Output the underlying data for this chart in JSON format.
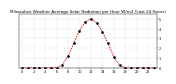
{
  "hours": [
    0,
    1,
    2,
    3,
    4,
    5,
    6,
    7,
    8,
    9,
    10,
    11,
    12,
    13,
    14,
    15,
    16,
    17,
    18,
    19,
    20,
    21,
    22,
    23
  ],
  "values": [
    0,
    0,
    0,
    0,
    0,
    0,
    2,
    30,
    120,
    250,
    380,
    470,
    500,
    460,
    370,
    250,
    110,
    25,
    2,
    0,
    0,
    0,
    0,
    0
  ],
  "line_color": "#dd0000",
  "dot_color": "#000000",
  "bg_color": "#ffffff",
  "ylim": [
    0,
    550
  ],
  "xlim": [
    -0.5,
    23.5
  ],
  "grid_color": "#bbbbbb",
  "title": "Milwaukee Weather Average Solar Radiation per Hour W/m2 (Last 24 Hours)",
  "title_fontsize": 3.0,
  "tick_fontsize": 2.5,
  "ytick_labels": [
    "0",
    "1",
    "2",
    "3",
    "4",
    "5"
  ],
  "ytick_values": [
    0,
    100,
    200,
    300,
    400,
    500
  ],
  "xtick_positions": [
    0,
    2,
    4,
    6,
    8,
    10,
    12,
    14,
    16,
    18,
    20,
    22
  ],
  "xtick_labels": [
    "0",
    "2",
    "4",
    "6",
    "8",
    "10",
    "12",
    "14",
    "16",
    "18",
    "20",
    "22"
  ]
}
